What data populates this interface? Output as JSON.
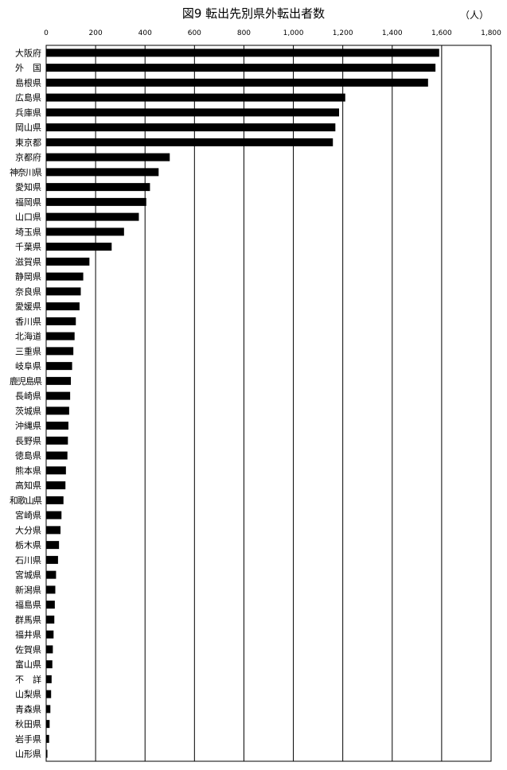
{
  "chart_data": {
    "type": "bar",
    "orientation": "horizontal",
    "title": "図9  転出先別県外転出者数",
    "unit": "（人）",
    "xlim": [
      0,
      1800
    ],
    "xticks": [
      0,
      200,
      400,
      600,
      800,
      1000,
      1200,
      1400,
      1600,
      1800
    ],
    "xtick_labels": [
      "0",
      "200",
      "400",
      "600",
      "800",
      "1,000",
      "1,200",
      "1,400",
      "1,600",
      "1,800"
    ],
    "grid": true,
    "categories": [
      "大阪府",
      "外　国",
      "島根県",
      "広島県",
      "兵庫県",
      "岡山県",
      "東京都",
      "京都府",
      "神奈川県",
      "愛知県",
      "福岡県",
      "山口県",
      "埼玉県",
      "千葉県",
      "滋賀県",
      "静岡県",
      "奈良県",
      "愛媛県",
      "香川県",
      "北海道",
      "三重県",
      "岐阜県",
      "鹿児島県",
      "長崎県",
      "茨城県",
      "沖縄県",
      "長野県",
      "徳島県",
      "熊本県",
      "高知県",
      "和歌山県",
      "宮崎県",
      "大分県",
      "栃木県",
      "石川県",
      "宮城県",
      "新潟県",
      "福島県",
      "群馬県",
      "福井県",
      "佐賀県",
      "富山県",
      "不　詳",
      "山梨県",
      "青森県",
      "秋田県",
      "岩手県",
      "山形県"
    ],
    "values": [
      1590,
      1575,
      1545,
      1210,
      1185,
      1170,
      1160,
      500,
      455,
      420,
      405,
      375,
      315,
      265,
      175,
      150,
      140,
      135,
      120,
      115,
      110,
      105,
      100,
      97,
      93,
      90,
      88,
      86,
      80,
      78,
      70,
      62,
      58,
      52,
      48,
      40,
      37,
      35,
      33,
      30,
      27,
      25,
      22,
      20,
      17,
      14,
      12,
      5
    ]
  }
}
